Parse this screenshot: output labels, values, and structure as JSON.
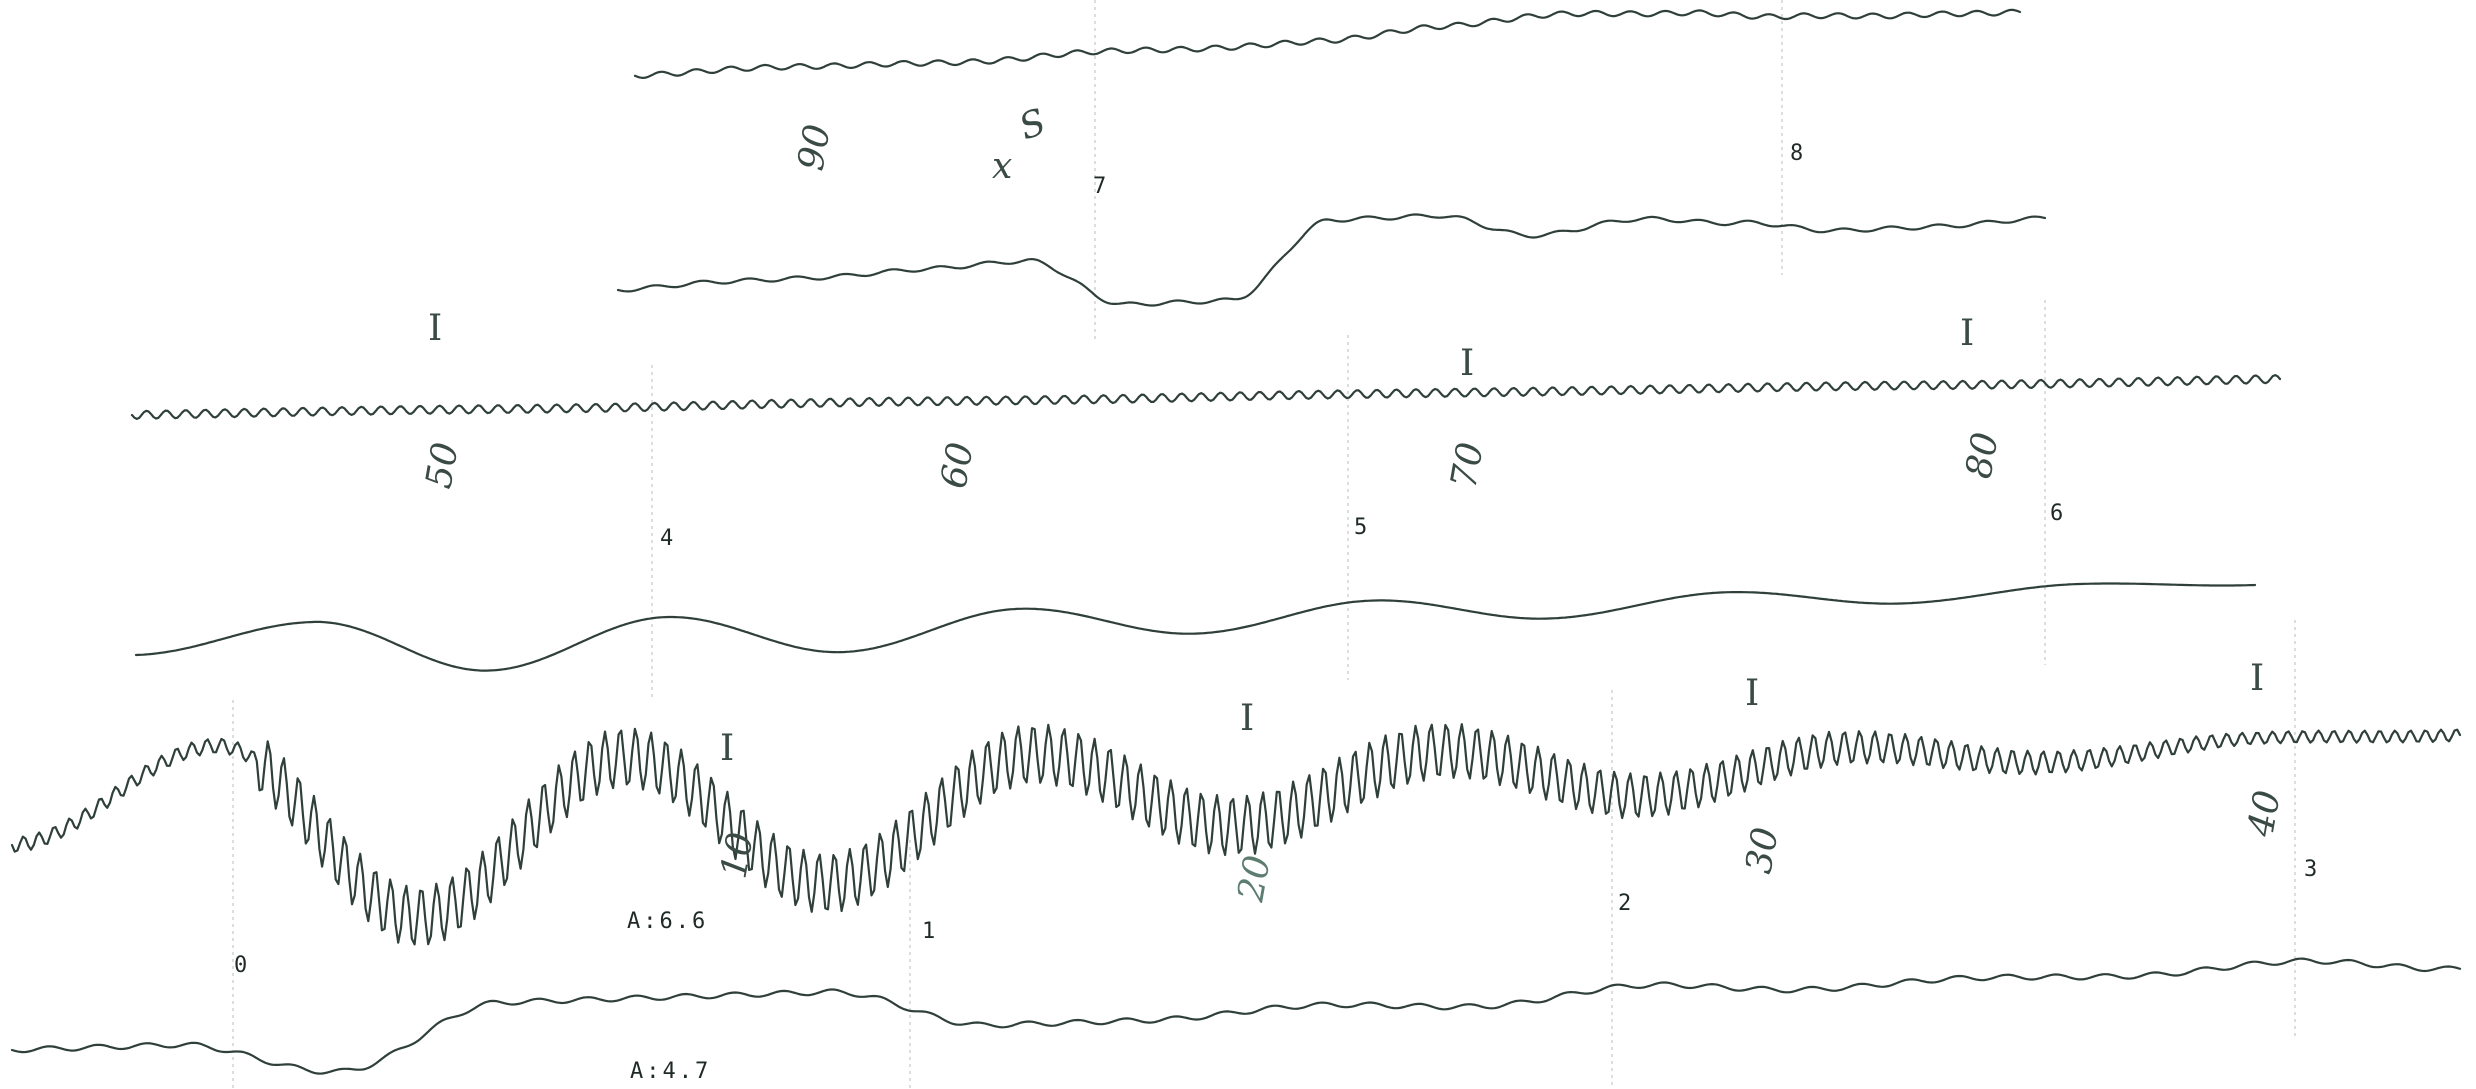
{
  "chart_data": {
    "type": "line",
    "markers": [
      "0",
      "1",
      "2",
      "3",
      "4",
      "5",
      "6",
      "7",
      "8"
    ],
    "amplitude_labels": [
      "A:6.6",
      "A:4.7"
    ],
    "handwritten_numbers": [
      "10",
      "20",
      "30",
      "40",
      "50",
      "60",
      "70",
      "80",
      "90"
    ],
    "handwritten_notes": [
      "x",
      "S"
    ],
    "tick_glyph": "I",
    "series": [
      {
        "values": [
          0.1,
          0.2,
          0.1,
          0.0,
          0.2,
          0.1,
          0.2,
          0.6,
          0.9,
          0.7,
          0.3,
          0.1,
          0.0
        ]
      },
      {
        "values": [
          0.0,
          0.1,
          0.1,
          0.2,
          0.3,
          -0.9,
          -0.9,
          1.0,
          1.0,
          0.4,
          0.7,
          0.5,
          0.2,
          0.2,
          0.3
        ]
      },
      {
        "values": [
          0.0,
          0.05,
          -0.05,
          0.1,
          0.0,
          0.1,
          0.05,
          0.1,
          0.0,
          0.1
        ]
      },
      {
        "values": [
          0.0,
          0.8,
          -0.8,
          0.6,
          -0.6,
          0.5,
          -0.4,
          0.4,
          -0.3,
          0.3,
          -0.2,
          0.2,
          0.0
        ]
      },
      {
        "values": [
          0.0,
          3.0,
          -3.0,
          2.0,
          -2.5,
          1.5,
          -1.2,
          1.0,
          -0.8,
          0.5,
          -0.3,
          0.2,
          0.0
        ]
      },
      {
        "values": [
          0.0,
          0.0,
          -1.0,
          1.0,
          1.0,
          1.0,
          -0.2,
          -0.2,
          0.1,
          -0.1,
          0.4,
          0.1,
          0.3,
          0.2,
          0.5,
          0.1
        ]
      }
    ]
  }
}
